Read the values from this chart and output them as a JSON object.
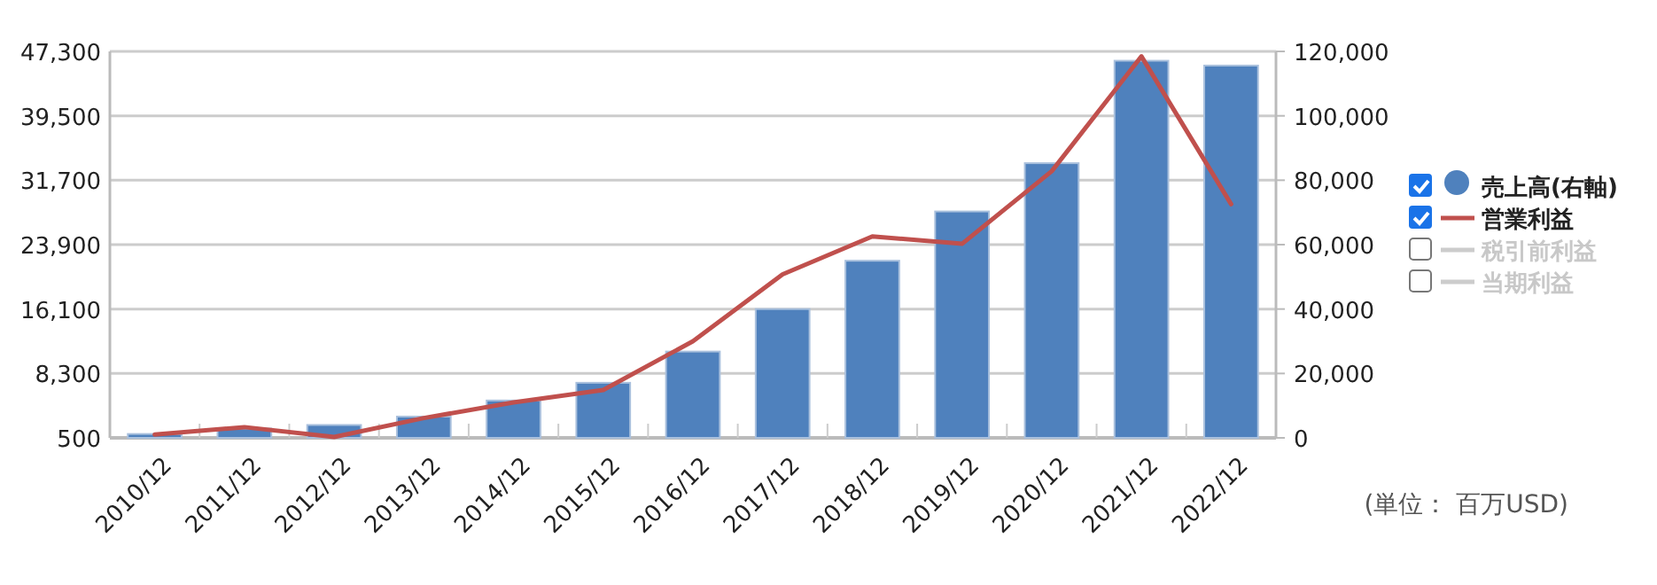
{
  "chart_data": {
    "type": "bar",
    "categories": [
      "2010/12",
      "2011/12",
      "2012/12",
      "2013/12",
      "2014/12",
      "2015/12",
      "2016/12",
      "2017/12",
      "2018/12",
      "2019/12",
      "2020/12",
      "2021/12",
      "2022/12"
    ],
    "series": [
      {
        "name": "売上高(右軸)",
        "axis": "y2",
        "color": "#4f81bd",
        "values": [
          1200,
          2900,
          4000,
          6600,
          11600,
          17100,
          26800,
          40000,
          55000,
          70300,
          85300,
          117100,
          115600
        ]
      },
      {
        "name": "営業利益",
        "type": "line",
        "color": "#c0504d",
        "values": [
          900,
          1800,
          600,
          2900,
          4800,
          6300,
          12200,
          20300,
          24900,
          24000,
          32800,
          46700,
          28800
        ]
      },
      {
        "name": "税引前利益",
        "type": "line",
        "color": "#cccccc",
        "values": [
          null,
          null,
          null,
          null,
          null,
          null,
          null,
          null,
          null,
          null,
          null,
          null,
          null
        ]
      },
      {
        "name": "当期利益",
        "type": "line",
        "color": "#cccccc",
        "values": [
          null,
          null,
          null,
          null,
          null,
          null,
          null,
          null,
          null,
          null,
          null,
          null,
          null
        ]
      }
    ],
    "ylim": [
      500,
      47300
    ],
    "yticks": [
      {
        "value": 500,
        "label": "500"
      },
      {
        "value": 8300,
        "label": "8,300"
      },
      {
        "value": 16100,
        "label": "16,100"
      },
      {
        "value": 23900,
        "label": "23,900"
      },
      {
        "value": 31700,
        "label": "31,700"
      },
      {
        "value": 39500,
        "label": "39,500"
      },
      {
        "value": 47300,
        "label": "47,300"
      }
    ],
    "y2lim": [
      0,
      120000
    ],
    "y2ticks": [
      {
        "value": 0,
        "label": "0"
      },
      {
        "value": 20000,
        "label": "20,000"
      },
      {
        "value": 40000,
        "label": "40,000"
      },
      {
        "value": 60000,
        "label": "60,000"
      },
      {
        "value": 80000,
        "label": "80,000"
      },
      {
        "value": 100000,
        "label": "100,000"
      },
      {
        "value": 120000,
        "label": "120,000"
      }
    ],
    "grid": "y",
    "legend": "right",
    "marker": "none",
    "line_style": "solid",
    "annotations": [
      "(単位： 百万USD)"
    ]
  }
}
